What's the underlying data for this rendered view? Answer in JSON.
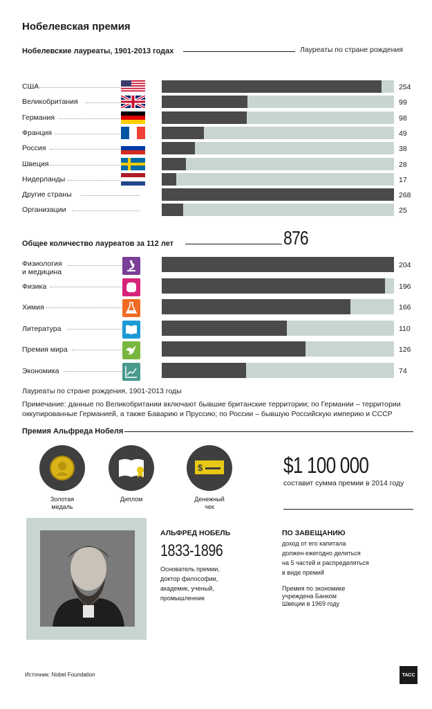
{
  "title": "Нобелевская премия",
  "section1": {
    "title": "Нобелевские лауреаты, 1901-2013 годах",
    "legend": "Лауреаты по стране рождения"
  },
  "chart_data": [
    {
      "type": "bar",
      "title": "Нобелевские лауреаты, 1901-2013 годах",
      "categories": [
        "США",
        "Великобритания",
        "Германия",
        "Франция",
        "Россия",
        "Швеция",
        "Нидерланды",
        "Другие страны",
        "Организации"
      ],
      "values": [
        254,
        99,
        98,
        49,
        38,
        28,
        17,
        268,
        25
      ],
      "xlim": [
        0,
        268
      ]
    },
    {
      "type": "bar",
      "title": "Общее количество лауреатов за 112 лет",
      "categories": [
        "Физиология и медицина",
        "Физика",
        "Химия",
        "Литература",
        "Премия мира",
        "Экономика"
      ],
      "values": [
        204,
        196,
        166,
        110,
        126,
        74
      ],
      "xlim": [
        0,
        204
      ]
    }
  ],
  "section2": {
    "title": "Общее количество лауреатов за 112 лет",
    "total": "876"
  },
  "cat_label_lines": [
    [
      "Физиология",
      "и медицина"
    ],
    [
      "Физика"
    ],
    [
      "Химия"
    ],
    [
      "Литература"
    ],
    [
      "Премия мира"
    ],
    [
      "Экономика"
    ]
  ],
  "cat_colors": [
    "#7b3f98",
    "#d6247a",
    "#ef6a22",
    "#1b9ad6",
    "#79b63e",
    "#4a9a8e"
  ],
  "cat_icons": [
    "microscope-icon",
    "atom-icon",
    "flask-icon",
    "book-icon",
    "dove-icon",
    "chart-icon"
  ],
  "flags": [
    "usa-flag-icon",
    "uk-flag-icon",
    "germany-flag-icon",
    "france-flag-icon",
    "russia-flag-icon",
    "sweden-flag-icon",
    "netherlands-flag-icon"
  ],
  "notes": {
    "caption": "Лауреаты по стране рождения, 1901-2013 годы",
    "remark_line1": "Примечание: данные по Великобритании включают бывшие британские территории; по Германии – территории",
    "remark_line2": "оккупированные Германией, а также Баварию и Пруссию; по России – бывшую Российскую империю и СССР"
  },
  "prize": {
    "title": "Премия Альфреда Нобеля",
    "medal_line1": "Золотая",
    "medal_line2": "медаль",
    "diploma": "Диплом",
    "check_line1": "Денежный",
    "check_line2": "чек",
    "amount": "$1 100 000",
    "amount_caption": "составит сумма премии в 2014 году"
  },
  "nobel": {
    "name": "АЛЬФРЕД НОБЕЛЬ",
    "years": "1833-1896",
    "bio_line1": "Основатель премии,",
    "bio_line2": "доктор философии,",
    "bio_line3": "академик, ученый,",
    "bio_line4": "промышленник"
  },
  "will": {
    "title": "ПО ЗАВЕЩАНИЮ",
    "line1": "доход от его капитала",
    "line2": "должен ежегодно делиться",
    "line3": "на 5 частей и распределяться",
    "line4": "в виде премий",
    "econ_line1": "Премия по экономике",
    "econ_line2": "учреждена Банком",
    "econ_line3": "Швеции в 1969 году"
  },
  "source": "Источник: Nobel Foundation",
  "logo": "ТАСС"
}
